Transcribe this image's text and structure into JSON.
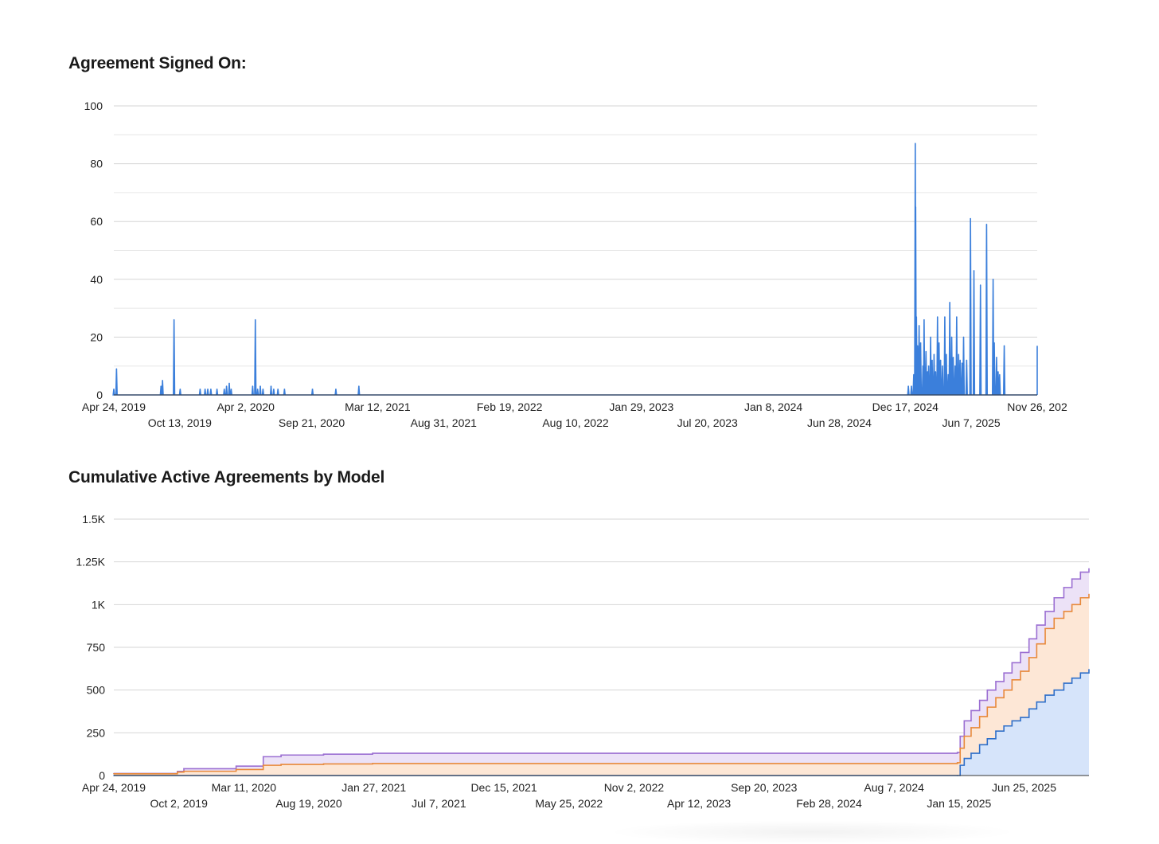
{
  "titles": {
    "chart1": "Agreement Signed On:",
    "chart2": "Cumulative Active Agreements by Model"
  },
  "colors": {
    "daily_line": "#3b7fdb",
    "series_blue": "#2f6fc9",
    "series_orange": "#e8893a",
    "series_purple": "#9b6fd2",
    "fill_blue": "#d6e4fa",
    "fill_orange": "#fde7d6",
    "fill_purple": "#ece2f7"
  },
  "chart_data": [
    {
      "type": "line",
      "title": "Agreement Signed On:",
      "xlabel": "",
      "ylabel": "",
      "x_range": [
        "2019-04-24",
        "2025-11-26"
      ],
      "ylim": [
        0,
        100
      ],
      "y_ticks": [
        0,
        20,
        40,
        60,
        80,
        100
      ],
      "y_tick_labels": [
        "0",
        "20",
        "40",
        "60",
        "80",
        "100"
      ],
      "x_tick_labels": [
        "Apr 24, 2019",
        "Oct 13, 2019",
        "Apr 2, 2020",
        "Sep 21, 2020",
        "Mar 12, 2021",
        "Aug 31, 2021",
        "Feb 19, 2022",
        "Aug 10, 2022",
        "Jan 29, 2023",
        "Jul 20, 2023",
        "Jan 8, 2024",
        "Jun 28, 2024",
        "Dec 17, 2024",
        "Jun 7, 2025",
        "Nov 26, 202"
      ],
      "grid": true,
      "legend": "none",
      "series": [
        {
          "points": [
            [
              "2019-04-24",
              2
            ],
            [
              "2019-05-01",
              9
            ],
            [
              "2019-08-25",
              3
            ],
            [
              "2019-08-29",
              5
            ],
            [
              "2019-09-28",
              26
            ],
            [
              "2019-10-14",
              2
            ],
            [
              "2019-12-05",
              2
            ],
            [
              "2019-12-18",
              2
            ],
            [
              "2019-12-25",
              2
            ],
            [
              "2020-01-02",
              2
            ],
            [
              "2020-01-18",
              2
            ],
            [
              "2020-02-06",
              2
            ],
            [
              "2020-02-12",
              3
            ],
            [
              "2020-02-19",
              4
            ],
            [
              "2020-02-24",
              2
            ],
            [
              "2020-04-20",
              3
            ],
            [
              "2020-04-27",
              26
            ],
            [
              "2020-05-03",
              2
            ],
            [
              "2020-05-10",
              3
            ],
            [
              "2020-05-17",
              2
            ],
            [
              "2020-06-07",
              3
            ],
            [
              "2020-06-14",
              2
            ],
            [
              "2020-06-25",
              2
            ],
            [
              "2020-07-12",
              2
            ],
            [
              "2020-09-23",
              2
            ],
            [
              "2020-11-23",
              2
            ],
            [
              "2021-01-22",
              3
            ],
            [
              "2024-12-25",
              3
            ],
            [
              "2025-01-02",
              3
            ],
            [
              "2025-01-08",
              7
            ],
            [
              "2025-01-12",
              87
            ],
            [
              "2025-01-13",
              65
            ],
            [
              "2025-01-15",
              27
            ],
            [
              "2025-01-18",
              17
            ],
            [
              "2025-01-22",
              24
            ],
            [
              "2025-01-26",
              18
            ],
            [
              "2025-02-01",
              10
            ],
            [
              "2025-02-04",
              26
            ],
            [
              "2025-02-09",
              15
            ],
            [
              "2025-02-13",
              8
            ],
            [
              "2025-02-16",
              10
            ],
            [
              "2025-02-21",
              20
            ],
            [
              "2025-02-25",
              12
            ],
            [
              "2025-03-02",
              14
            ],
            [
              "2025-03-06",
              8
            ],
            [
              "2025-03-11",
              27
            ],
            [
              "2025-03-15",
              18
            ],
            [
              "2025-03-19",
              12
            ],
            [
              "2025-03-24",
              10
            ],
            [
              "2025-03-30",
              27
            ],
            [
              "2025-04-03",
              14
            ],
            [
              "2025-04-08",
              7
            ],
            [
              "2025-04-12",
              32
            ],
            [
              "2025-04-17",
              20
            ],
            [
              "2025-04-21",
              13
            ],
            [
              "2025-04-26",
              10
            ],
            [
              "2025-04-30",
              27
            ],
            [
              "2025-05-05",
              14
            ],
            [
              "2025-05-09",
              12
            ],
            [
              "2025-05-14",
              11
            ],
            [
              "2025-05-18",
              20
            ],
            [
              "2025-05-26",
              12
            ],
            [
              "2025-06-05",
              61
            ],
            [
              "2025-06-14",
              43
            ],
            [
              "2025-07-01",
              38
            ],
            [
              "2025-07-17",
              59
            ],
            [
              "2025-08-03",
              40
            ],
            [
              "2025-08-06",
              18
            ],
            [
              "2025-08-12",
              13
            ],
            [
              "2025-08-16",
              8
            ],
            [
              "2025-08-20",
              7
            ],
            [
              "2025-09-01",
              17
            ]
          ]
        }
      ]
    },
    {
      "type": "area",
      "title": "Cumulative Active Agreements by Model",
      "xlabel": "",
      "ylabel": "",
      "x_range": [
        "2019-04-24",
        "2025-11-26"
      ],
      "ylim": [
        0,
        1500
      ],
      "y_ticks": [
        0,
        250,
        500,
        750,
        1000,
        1250,
        1500
      ],
      "y_tick_labels": [
        "0",
        "250",
        "500",
        "750",
        "1K",
        "1.25K",
        "1.5K"
      ],
      "x_tick_labels": [
        "Apr 24, 2019",
        "Oct 2, 2019",
        "Mar 11, 2020",
        "Aug 19, 2020",
        "Jan 27, 2021",
        "Jul 7, 2021",
        "Dec 15, 2021",
        "May 25, 2022",
        "Nov 2, 2022",
        "Apr 12, 2023",
        "Sep 20, 2023",
        "Feb 28, 2024",
        "Aug 7, 2024",
        "Jan 15, 2025",
        "Jun 25, 2025"
      ],
      "grid": true,
      "legend": "none",
      "series": [
        {
          "color_key": "series_blue",
          "points": [
            [
              "2019-04-24",
              0
            ],
            [
              "2025-01-05",
              0
            ],
            [
              "2025-01-12",
              60
            ],
            [
              "2025-01-22",
              100
            ],
            [
              "2025-02-08",
              130
            ],
            [
              "2025-03-01",
              180
            ],
            [
              "2025-03-20",
              215
            ],
            [
              "2025-04-10",
              260
            ],
            [
              "2025-04-30",
              290
            ],
            [
              "2025-05-20",
              320
            ],
            [
              "2025-06-10",
              340
            ],
            [
              "2025-07-01",
              390
            ],
            [
              "2025-07-20",
              430
            ],
            [
              "2025-08-10",
              470
            ],
            [
              "2025-09-01",
              500
            ],
            [
              "2025-09-25",
              540
            ],
            [
              "2025-10-15",
              570
            ],
            [
              "2025-11-05",
              600
            ],
            [
              "2025-11-26",
              620
            ]
          ]
        },
        {
          "color_key": "series_orange",
          "points": [
            [
              "2019-04-24",
              10
            ],
            [
              "2019-09-28",
              20
            ],
            [
              "2019-10-14",
              25
            ],
            [
              "2020-02-20",
              35
            ],
            [
              "2020-04-27",
              60
            ],
            [
              "2020-06-10",
              65
            ],
            [
              "2020-09-23",
              68
            ],
            [
              "2021-01-22",
              70
            ],
            [
              "2025-01-05",
              75
            ],
            [
              "2025-01-12",
              160
            ],
            [
              "2025-01-22",
              230
            ],
            [
              "2025-02-08",
              280
            ],
            [
              "2025-03-01",
              345
            ],
            [
              "2025-03-20",
              400
            ],
            [
              "2025-04-10",
              455
            ],
            [
              "2025-04-30",
              500
            ],
            [
              "2025-05-20",
              560
            ],
            [
              "2025-06-10",
              610
            ],
            [
              "2025-07-01",
              690
            ],
            [
              "2025-07-20",
              770
            ],
            [
              "2025-08-10",
              860
            ],
            [
              "2025-09-01",
              920
            ],
            [
              "2025-09-25",
              960
            ],
            [
              "2025-10-15",
              1000
            ],
            [
              "2025-11-05",
              1040
            ],
            [
              "2025-11-26",
              1060
            ]
          ]
        },
        {
          "color_key": "series_purple",
          "points": [
            [
              "2019-04-24",
              12
            ],
            [
              "2019-09-28",
              24
            ],
            [
              "2019-10-14",
              40
            ],
            [
              "2020-02-20",
              55
            ],
            [
              "2020-04-27",
              110
            ],
            [
              "2020-06-10",
              120
            ],
            [
              "2020-09-23",
              125
            ],
            [
              "2021-01-22",
              130
            ],
            [
              "2025-01-05",
              135
            ],
            [
              "2025-01-12",
              230
            ],
            [
              "2025-01-22",
              320
            ],
            [
              "2025-02-08",
              380
            ],
            [
              "2025-03-01",
              440
            ],
            [
              "2025-03-20",
              500
            ],
            [
              "2025-04-10",
              550
            ],
            [
              "2025-04-30",
              600
            ],
            [
              "2025-05-20",
              660
            ],
            [
              "2025-06-10",
              720
            ],
            [
              "2025-07-01",
              800
            ],
            [
              "2025-07-20",
              880
            ],
            [
              "2025-08-10",
              960
            ],
            [
              "2025-09-01",
              1040
            ],
            [
              "2025-09-25",
              1100
            ],
            [
              "2025-10-15",
              1150
            ],
            [
              "2025-11-05",
              1190
            ],
            [
              "2025-11-26",
              1210
            ]
          ]
        }
      ]
    }
  ]
}
